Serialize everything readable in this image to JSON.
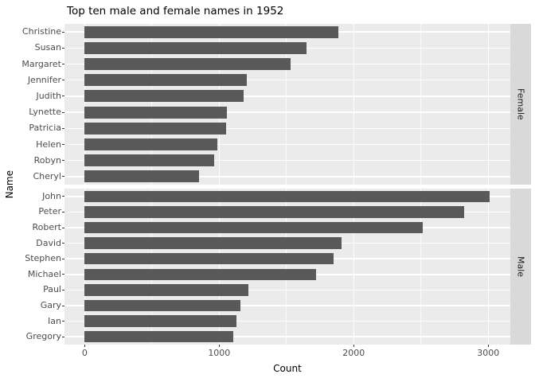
{
  "chart_data": {
    "type": "bar",
    "orientation": "horizontal",
    "title": "Top ten male and female names in 1952",
    "xlabel": "Count",
    "ylabel": "Name",
    "xlim": [
      -150,
      3164
    ],
    "x_major_gridlines": [
      0,
      1000,
      2000,
      3000
    ],
    "x_minor_gridlines": [
      500,
      1500,
      2500
    ],
    "x_tick_labels": [
      "0",
      "1000",
      "2000",
      "3000"
    ],
    "grid": "on",
    "legend": "none",
    "facets": [
      {
        "label": "Female",
        "categories": [
          "Christine",
          "Susan",
          "Margaret",
          "Jennifer",
          "Judith",
          "Lynette",
          "Patricia",
          "Helen",
          "Robyn",
          "Cheryl"
        ],
        "values": [
          1885,
          1650,
          1530,
          1205,
          1180,
          1055,
          1050,
          985,
          965,
          850
        ]
      },
      {
        "label": "Male",
        "categories": [
          "John",
          "Peter",
          "Robert",
          "David",
          "Stephen",
          "Michael",
          "Paul",
          "Gary",
          "Ian",
          "Gregory"
        ],
        "values": [
          3010,
          2820,
          2515,
          1910,
          1850,
          1720,
          1220,
          1160,
          1130,
          1105
        ]
      }
    ]
  },
  "colors": {
    "bar": "#595959",
    "panel_bg": "#EBEBEB",
    "grid_major": "#FFFFFF",
    "grid_minor": "rgba(255,255,255,0.75)",
    "strip_bg": "#D9D9D9",
    "strip_text": "#1A1A1A",
    "axis_text": "#4D4D4D",
    "tick_mark": "#333333"
  }
}
